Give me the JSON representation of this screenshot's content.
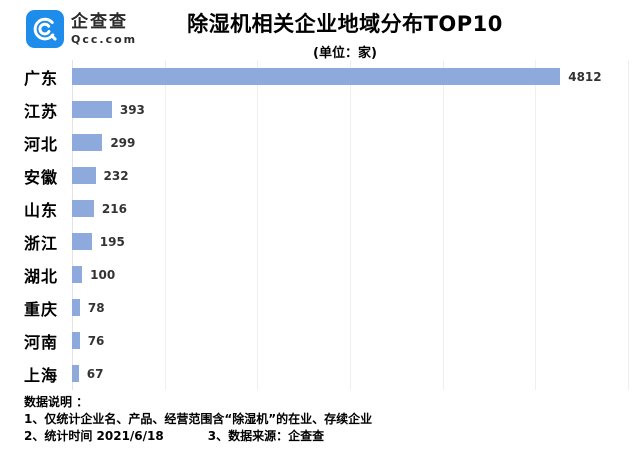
{
  "logo": {
    "name": "企查查",
    "domain": "Qcc.com",
    "brand_color": "#1E8CEB"
  },
  "chart_data": {
    "type": "bar",
    "orientation": "horizontal",
    "title": "除湿机相关企业地域分布TOP10",
    "subtitle": "(单位：家)",
    "categories": [
      "广东",
      "江苏",
      "河北",
      "安徽",
      "山东",
      "浙江",
      "湖北",
      "重庆",
      "河南",
      "上海"
    ],
    "values": [
      4812,
      393,
      299,
      232,
      216,
      195,
      100,
      78,
      76,
      67
    ],
    "xlabel": "",
    "ylabel": "",
    "xlim": [
      0,
      5480
    ],
    "gridline_intervals": 6,
    "grid": "vertical-only",
    "legend": "none",
    "bar_color": "#8EA9DB"
  },
  "footer": {
    "heading": "数据说明 ：",
    "note1": "1、仅统计企业名、产品、经营范围含“除湿机”的在业、存续企业",
    "note2_left": "2、统计时间 2021/6/18",
    "note2_right": "3、数据来源：企查查"
  }
}
